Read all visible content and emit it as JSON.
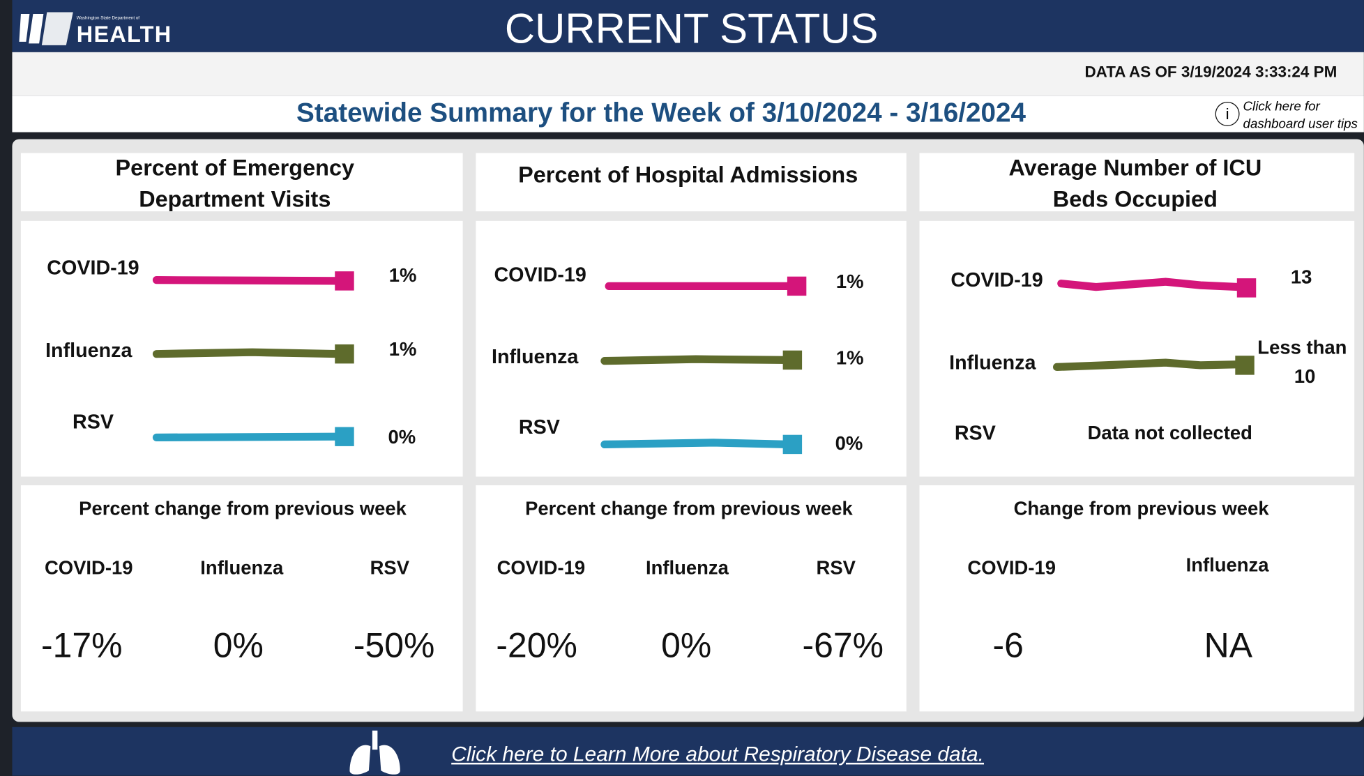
{
  "header": {
    "logo_subtext": "Washington State Department of",
    "logo_text": "HEALTH",
    "title": "CURRENT STATUS"
  },
  "data_as_of": "DATA AS OF 3/19/2024 3:33:24 PM",
  "summary_title": "Statewide Summary for the Week of 3/10/2024 - 3/16/2024",
  "tips": [
    "Click here for",
    "dashboard user tips"
  ],
  "panels": [
    {
      "title": [
        "Percent of Emergency",
        "Department Visits"
      ],
      "rows": [
        {
          "label": "COVID-19",
          "value": "1%"
        },
        {
          "label": "Influenza",
          "value": "1%"
        },
        {
          "label": "RSV",
          "value": "0%"
        }
      ],
      "change_title": "Percent change from previous week",
      "changes": [
        {
          "label": "COVID-19",
          "value": "-17%"
        },
        {
          "label": "Influenza",
          "value": "0%"
        },
        {
          "label": "RSV",
          "value": "-50%"
        }
      ]
    },
    {
      "title": [
        "Percent of Hospital Admissions"
      ],
      "rows": [
        {
          "label": "COVID-19",
          "value": "1%"
        },
        {
          "label": "Influenza",
          "value": "1%"
        },
        {
          "label": "RSV",
          "value": "0%"
        }
      ],
      "change_title": "Percent change from previous week",
      "changes": [
        {
          "label": "COVID-19",
          "value": "-20%"
        },
        {
          "label": "Influenza",
          "value": "0%"
        },
        {
          "label": "RSV",
          "value": "-67%"
        }
      ]
    },
    {
      "title": [
        "Average Number of ICU",
        "Beds Occupied"
      ],
      "rows": [
        {
          "label": "COVID-19",
          "value": [
            "13"
          ]
        },
        {
          "label": "Influenza",
          "value": [
            "Less than",
            "10"
          ]
        },
        {
          "label": "RSV",
          "value": [
            "Data not collected"
          ]
        }
      ],
      "change_title": "Change from previous week",
      "changes": [
        {
          "label": "COVID-19",
          "value": "-6"
        },
        {
          "label": "Influenza",
          "value": "NA"
        }
      ]
    }
  ],
  "footer_link": "Click here to Learn More about Respiratory Disease data."
}
